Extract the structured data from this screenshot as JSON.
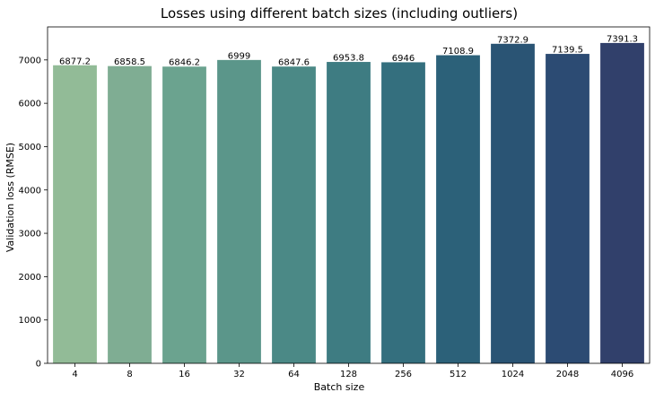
{
  "chart_data": {
    "type": "bar",
    "title": "Losses using different batch sizes (including outliers)",
    "xlabel": "Batch size",
    "ylabel": "Validation loss (RMSE)",
    "categories": [
      "4",
      "8",
      "16",
      "32",
      "64",
      "128",
      "256",
      "512",
      "1024",
      "2048",
      "4096"
    ],
    "values": [
      6877.2,
      6858.5,
      6846.2,
      6999,
      6847.6,
      6953.8,
      6946,
      7108.9,
      7372.9,
      7139.5,
      7391.3
    ],
    "value_labels": [
      "6877.2",
      "6858.5",
      "6846.2",
      "6999",
      "6847.6",
      "6953.8",
      "6946",
      "7108.9",
      "7372.9",
      "7139.5",
      "7391.3"
    ],
    "ylim": [
      0,
      7762
    ],
    "yticks": [
      0,
      1000,
      2000,
      3000,
      4000,
      5000,
      6000,
      7000
    ],
    "ytick_labels": [
      "0",
      "1000",
      "2000",
      "3000",
      "4000",
      "5000",
      "6000",
      "7000"
    ],
    "grid": false,
    "legend": "none",
    "colors": [
      "#92bb97",
      "#7fad93",
      "#6ba38f",
      "#5b968a",
      "#4b8986",
      "#3e7c82",
      "#346f7e",
      "#2c6179",
      "#2a5474",
      "#2c4b73",
      "#31406b"
    ]
  }
}
